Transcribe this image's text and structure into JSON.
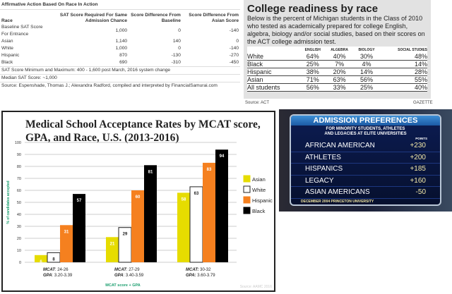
{
  "sat_table": {
    "title": "Affirmative Action Based On Race In Action",
    "headers": [
      "Race",
      "SAT Score Required For Same Admission Chance",
      "Score Difference From Baseline",
      "Score Difference From Asian Score"
    ],
    "rows": [
      [
        "Baseline SAT Score For Entrance",
        "1,000",
        "0",
        "-140"
      ],
      [
        "Asian",
        "1,140",
        "140",
        "0"
      ],
      [
        "White",
        "1,000",
        "0",
        "-140"
      ],
      [
        "Hispanic",
        "870",
        "-130",
        "-270"
      ],
      [
        "Black",
        "690",
        "-310",
        "-450"
      ]
    ],
    "notes": [
      "SAT Score Minimum and Maximum: 400 - 1,600 post March, 2016 system change",
      "Median SAT Score: ~1,000",
      "Source: Espenshade, Thomas J.; Alexandra Radford, compiled and interpreted by FinancialSamurai.com"
    ]
  },
  "readiness": {
    "title": "College readiness by race",
    "description": "Below is the percent of Michigan students in the Class of 2010 who tested as academically  prepared for college English, algebra, biology and/or social studies, based on their scores on the ACT college admission test.",
    "headers": [
      "",
      "ENGLISH",
      "ALGEBRA",
      "BIOLOGY",
      "SOCIAL STUDIES"
    ],
    "rows": [
      [
        "White",
        "64%",
        "40%",
        "30%",
        "48%"
      ],
      [
        "Black",
        "25%",
        "7%",
        "4%",
        "14%"
      ],
      [
        "Hispanic",
        "38%",
        "20%",
        "14%",
        "28%"
      ],
      [
        "Asian",
        "71%",
        "63%",
        "56%",
        "55%"
      ],
      [
        "All students",
        "56%",
        "33%",
        "25%",
        "40%"
      ]
    ],
    "source": "Source: ACT",
    "credit": "GAZETTE"
  },
  "admission": {
    "title": "ADMISSION PREFERENCES",
    "subtitle1": "FOR MINORITY STUDENTS, ATHLETES",
    "subtitle2": "AND LEGACIES AT ELITE UNIVERSITIES",
    "points_label": "POINTS",
    "rows": [
      [
        "AFRICAN AMERICAN",
        "+230"
      ],
      [
        "ATHLETES",
        "+200"
      ],
      [
        "HISPANICS",
        "+185"
      ],
      [
        "LEGACY",
        "+160"
      ],
      [
        "ASIAN AMERICANS",
        "-50"
      ]
    ],
    "footer": "DECEMBER 2004   PRINCETON UNIVERSITY"
  },
  "chart_data": {
    "type": "bar",
    "title_line1": "Medical School Acceptance Rates by MCAT score,",
    "title_line2": "GPA, and Race, U.S. (2013-2016)",
    "ylabel": "% of candidates accepted",
    "xlabel": "MCAT score + GPA",
    "ylim": [
      0,
      100
    ],
    "yticks": [
      0,
      10,
      20,
      30,
      40,
      50,
      60,
      70,
      80,
      90,
      100
    ],
    "grid": true,
    "legend": "right",
    "categories": [
      {
        "mcat": "MCAT",
        "mcat_range": ": 24-26",
        "gpa": "GPA",
        "gpa_range": ": 3.20-3.39"
      },
      {
        "mcat": "MCAT",
        "mcat_range": ": 27-29",
        "gpa": "GPA",
        "gpa_range": ": 3.40-3.59"
      },
      {
        "mcat": "MCAT:",
        "mcat_range": " 30-32",
        "gpa": "GPA:",
        "gpa_range": " 3.60-3.79"
      }
    ],
    "series": [
      {
        "name": "Asian",
        "color": "#e6dc00",
        "values": [
          6,
          21,
          58
        ]
      },
      {
        "name": "White",
        "color": "#ffffff",
        "values": [
          8,
          29,
          63
        ]
      },
      {
        "name": "Hispanic",
        "color": "#f5801f",
        "values": [
          31,
          60,
          83
        ]
      },
      {
        "name": "Black",
        "color": "#000000",
        "values": [
          57,
          81,
          94
        ]
      }
    ],
    "source": "Source: AAMC 2016"
  }
}
